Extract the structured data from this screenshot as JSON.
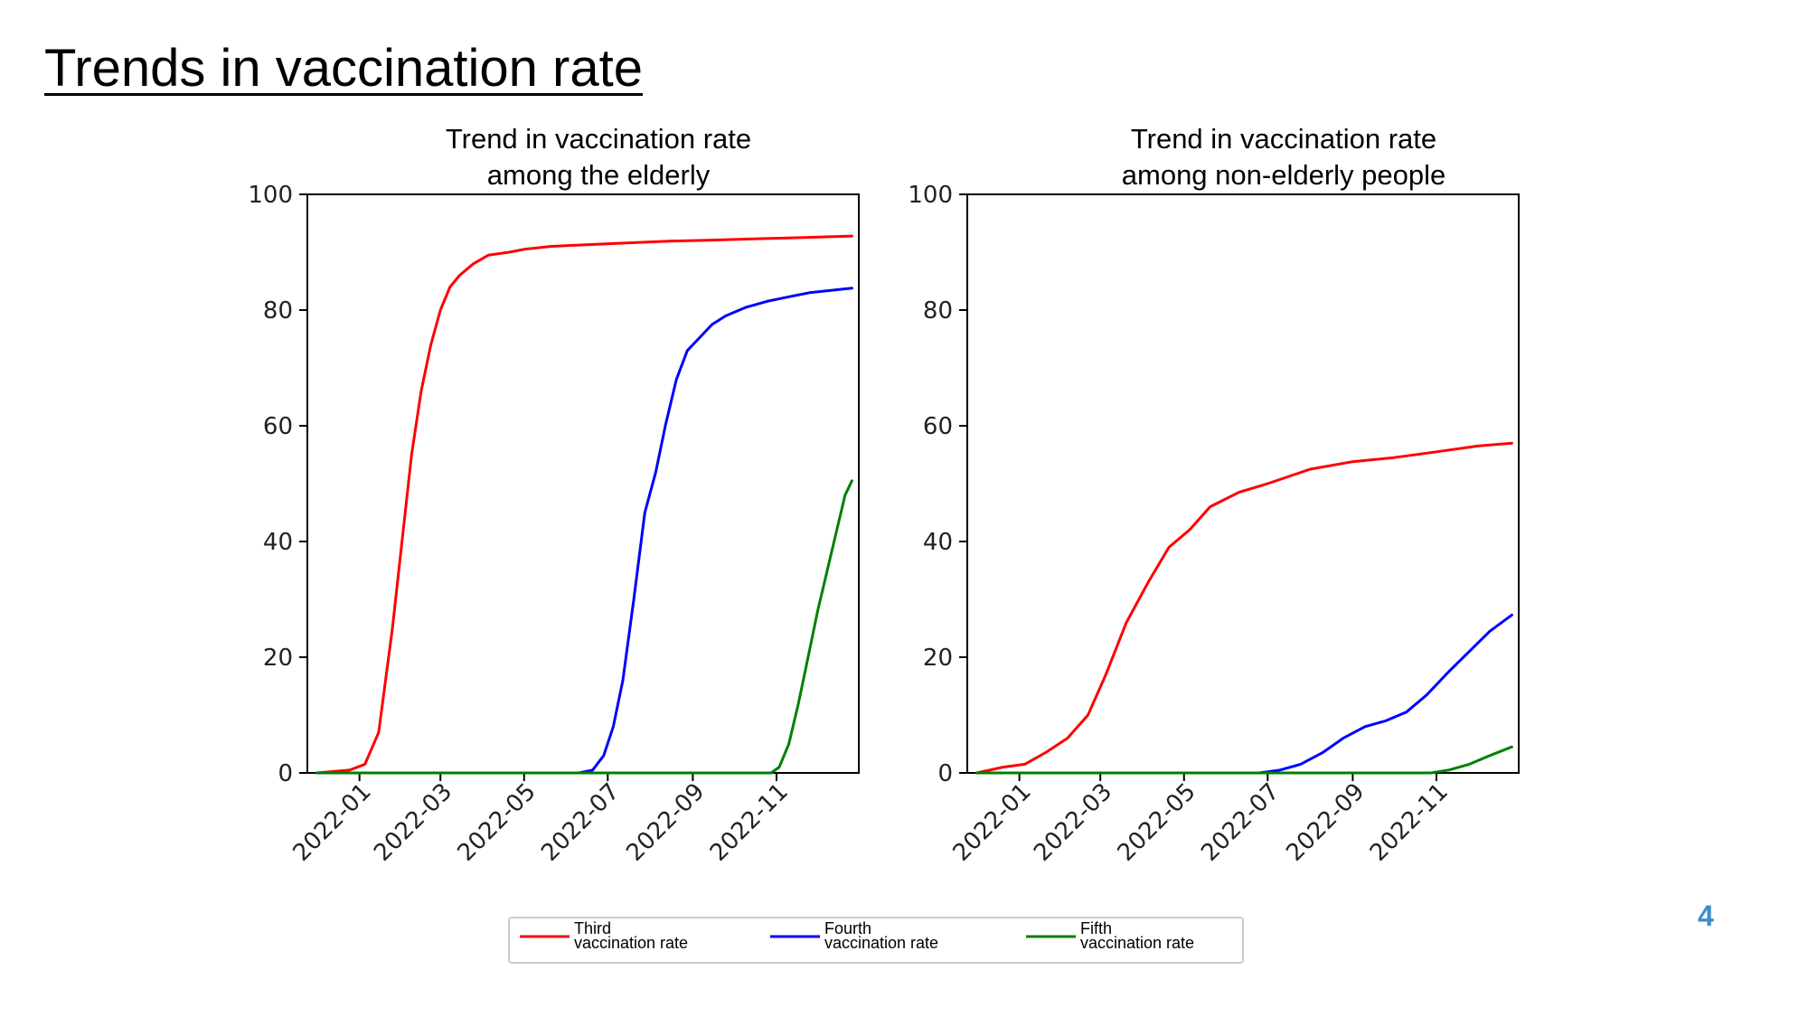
{
  "slide": {
    "title": "Trends in vaccination rate",
    "page_number": "4"
  },
  "colors": {
    "third": "#ff0000",
    "fourth": "#0000ff",
    "fifth": "#008000",
    "page_number": "#3a8fc7"
  },
  "legend": [
    {
      "line1": "Third",
      "line2": "vaccination rate",
      "color": "#ff0000"
    },
    {
      "line1": "Fourth",
      "line2": "vaccination rate",
      "color": "#0000ff"
    },
    {
      "line1": "Fifth",
      "line2": "vaccination rate",
      "color": "#008000"
    }
  ],
  "chart_data": [
    {
      "type": "line",
      "title_lines": [
        "Trend in vaccination rate",
        "among the elderly"
      ],
      "xlim": [
        "2021-11-24",
        "2022-12-31"
      ],
      "ylim": [
        0,
        100
      ],
      "x_ticks": [
        "2022-01-01",
        "2022-03-01",
        "2022-05-01",
        "2022-07-01",
        "2022-09-01",
        "2022-11-01"
      ],
      "x_tick_labels": [
        "2022-01",
        "2022-03",
        "2022-05",
        "2022-07",
        "2022-09",
        "2022-11"
      ],
      "y_ticks": [
        0,
        20,
        40,
        60,
        80,
        100
      ],
      "grid": false,
      "series": [
        {
          "name": "Third vaccination rate",
          "color": "#ff0000",
          "x": [
            "2021-12-01",
            "2021-12-25",
            "2022-01-05",
            "2022-01-15",
            "2022-01-25",
            "2022-02-01",
            "2022-02-08",
            "2022-02-15",
            "2022-02-22",
            "2022-03-01",
            "2022-03-08",
            "2022-03-15",
            "2022-03-25",
            "2022-04-05",
            "2022-04-20",
            "2022-05-01",
            "2022-05-20",
            "2022-06-15",
            "2022-07-15",
            "2022-08-15",
            "2022-09-15",
            "2022-10-15",
            "2022-11-15",
            "2022-12-26"
          ],
          "y": [
            0,
            0.5,
            1.5,
            7,
            25,
            40,
            55,
            66,
            74,
            80,
            84,
            86,
            88,
            89.5,
            90,
            90.5,
            91,
            91.3,
            91.6,
            91.9,
            92.1,
            92.3,
            92.5,
            92.8
          ]
        },
        {
          "name": "Fourth vaccination rate",
          "color": "#0000ff",
          "x": [
            "2021-12-01",
            "2022-06-10",
            "2022-06-20",
            "2022-06-28",
            "2022-07-05",
            "2022-07-12",
            "2022-07-20",
            "2022-07-28",
            "2022-08-05",
            "2022-08-12",
            "2022-08-20",
            "2022-08-28",
            "2022-09-05",
            "2022-09-15",
            "2022-09-25",
            "2022-10-10",
            "2022-10-25",
            "2022-11-10",
            "2022-11-25",
            "2022-12-26"
          ],
          "y": [
            0,
            0,
            0.5,
            3,
            8,
            16,
            30,
            45,
            52,
            60,
            68,
            73,
            75,
            77.5,
            79,
            80.5,
            81.5,
            82.3,
            83,
            83.8
          ]
        },
        {
          "name": "Fifth vaccination rate",
          "color": "#008000",
          "x": [
            "2021-12-01",
            "2022-10-28",
            "2022-11-03",
            "2022-11-10",
            "2022-11-17",
            "2022-11-24",
            "2022-12-01",
            "2022-12-08",
            "2022-12-15",
            "2022-12-21",
            "2022-12-26"
          ],
          "y": [
            0,
            0,
            1,
            5,
            12,
            20,
            28,
            35,
            42,
            48,
            50.5
          ]
        }
      ]
    },
    {
      "type": "line",
      "title_lines": [
        "Trend in vaccination rate",
        "among non-elderly people"
      ],
      "xlim": [
        "2021-11-24",
        "2022-12-31"
      ],
      "ylim": [
        0,
        100
      ],
      "x_ticks": [
        "2022-01-01",
        "2022-03-01",
        "2022-05-01",
        "2022-07-01",
        "2022-09-01",
        "2022-11-01"
      ],
      "x_tick_labels": [
        "2022-01",
        "2022-03",
        "2022-05",
        "2022-07",
        "2022-09",
        "2022-11"
      ],
      "y_ticks": [
        0,
        20,
        40,
        60,
        80,
        100
      ],
      "grid": false,
      "series": [
        {
          "name": "Third vaccination rate",
          "color": "#ff0000",
          "x": [
            "2021-12-01",
            "2021-12-20",
            "2022-01-05",
            "2022-01-20",
            "2022-02-05",
            "2022-02-20",
            "2022-03-05",
            "2022-03-20",
            "2022-04-05",
            "2022-04-20",
            "2022-05-05",
            "2022-05-20",
            "2022-06-10",
            "2022-07-01",
            "2022-08-01",
            "2022-09-01",
            "2022-10-01",
            "2022-11-01",
            "2022-12-01",
            "2022-12-26"
          ],
          "y": [
            0,
            1,
            1.5,
            3.5,
            6,
            10,
            17,
            26,
            33,
            39,
            42,
            46,
            48.5,
            50,
            52.5,
            53.8,
            54.5,
            55.5,
            56.5,
            57
          ]
        },
        {
          "name": "Fourth vaccination rate",
          "color": "#0000ff",
          "x": [
            "2021-12-01",
            "2022-06-25",
            "2022-07-10",
            "2022-07-25",
            "2022-08-10",
            "2022-08-25",
            "2022-09-10",
            "2022-09-25",
            "2022-10-10",
            "2022-10-25",
            "2022-11-10",
            "2022-11-25",
            "2022-12-10",
            "2022-12-26"
          ],
          "y": [
            0,
            0,
            0.5,
            1.5,
            3.5,
            6,
            8,
            9,
            10.5,
            13.5,
            17.5,
            21,
            24.5,
            27.3
          ]
        },
        {
          "name": "Fifth vaccination rate",
          "color": "#008000",
          "x": [
            "2021-12-01",
            "2022-10-28",
            "2022-11-10",
            "2022-11-25",
            "2022-12-10",
            "2022-12-26"
          ],
          "y": [
            0,
            0,
            0.5,
            1.5,
            3,
            4.5
          ]
        }
      ]
    }
  ]
}
